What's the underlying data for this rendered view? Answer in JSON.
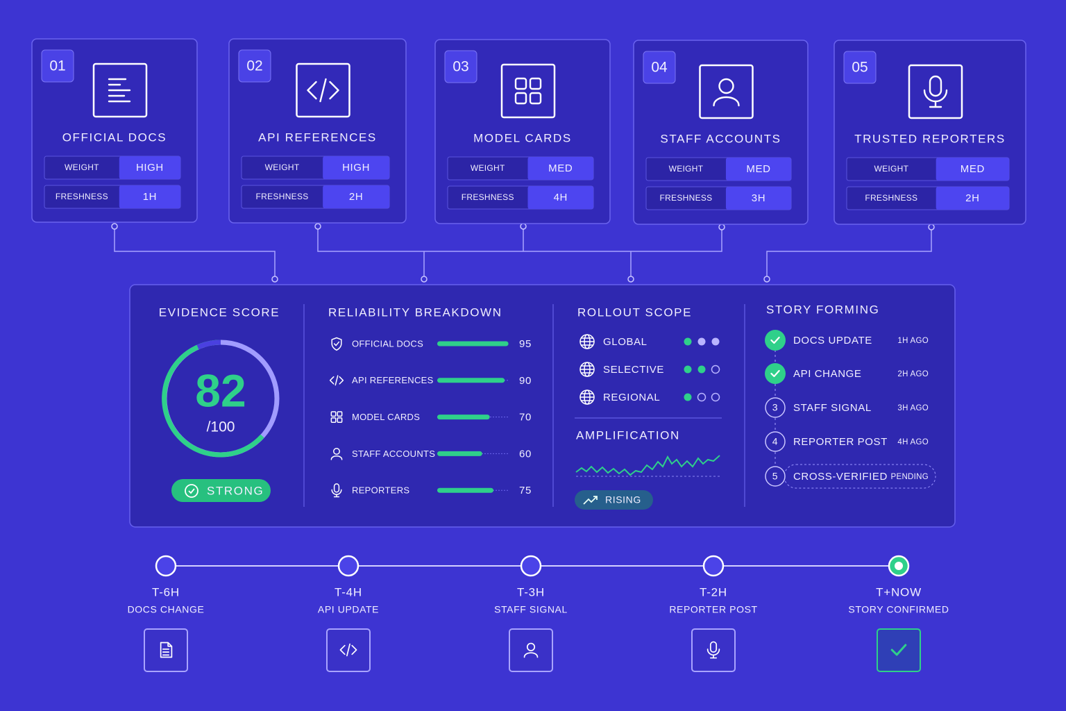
{
  "sources": [
    {
      "number": "01",
      "title": "OFFICIAL DOCS",
      "weight_label": "WEIGHT",
      "weight": "HIGH",
      "freshness_label": "FRESHNESS",
      "freshness": "1H"
    },
    {
      "number": "02",
      "title": "API REFERENCES",
      "weight_label": "WEIGHT",
      "weight": "HIGH",
      "freshness_label": "FRESHNESS",
      "freshness": "2H"
    },
    {
      "number": "03",
      "title": "MODEL CARDS",
      "weight_label": "WEIGHT",
      "weight": "MED",
      "freshness_label": "FRESHNESS",
      "freshness": "4H"
    },
    {
      "number": "04",
      "title": "STAFF ACCOUNTS",
      "weight_label": "WEIGHT",
      "weight": "MED",
      "freshness_label": "FRESHNESS",
      "freshness": "3H"
    },
    {
      "number": "05",
      "title": "TRUSTED REPORTERS",
      "weight_label": "WEIGHT",
      "weight": "MED",
      "freshness_label": "FRESHNESS",
      "freshness": "2H"
    }
  ],
  "evidence": {
    "title": "EVIDENCE SCORE",
    "score": 82,
    "max_label": "/100",
    "status": "STRONG"
  },
  "reliability": {
    "title": "RELIABILITY BREAKDOWN",
    "items": [
      {
        "label": "OFFICIAL DOCS",
        "value": 95
      },
      {
        "label": "API REFERENCES",
        "value": 90
      },
      {
        "label": "MODEL CARDS",
        "value": 70
      },
      {
        "label": "STAFF ACCOUNTS",
        "value": 60
      },
      {
        "label": "REPORTERS",
        "value": 75
      }
    ]
  },
  "rollout": {
    "title": "ROLLOUT SCOPE",
    "items": [
      {
        "label": "GLOBAL"
      },
      {
        "label": "SELECTIVE"
      },
      {
        "label": "REGIONAL"
      }
    ]
  },
  "amplification": {
    "title": "AMPLIFICATION",
    "trend": "RISING"
  },
  "story": {
    "title": "STORY FORMING",
    "steps": [
      {
        "label": "DOCS UPDATE",
        "time": "1H AGO"
      },
      {
        "label": "API CHANGE",
        "time": "2H AGO"
      },
      {
        "number": "3",
        "label": "STAFF SIGNAL",
        "time": "3H AGO"
      },
      {
        "number": "4",
        "label": "REPORTER POST",
        "time": "4H AGO"
      },
      {
        "number": "5",
        "label": "CROSS-VERIFIED",
        "time": "PENDING"
      }
    ]
  },
  "timeline": [
    {
      "time": "T-6H",
      "event": "DOCS CHANGE"
    },
    {
      "time": "T-4H",
      "event": "API UPDATE"
    },
    {
      "time": "T-3H",
      "event": "STAFF SIGNAL"
    },
    {
      "time": "T-2H",
      "event": "REPORTER POST"
    },
    {
      "time": "T+NOW",
      "event": "STORY CONFIRMED"
    }
  ]
}
